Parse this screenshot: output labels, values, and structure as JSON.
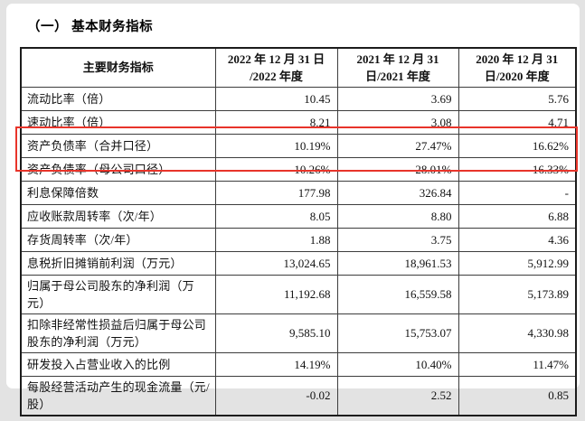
{
  "page": {
    "title": "（一） 基本财务指标"
  },
  "highlight_color": "#e8342a",
  "table": {
    "header": {
      "label": "主要财务指标",
      "cols": [
        {
          "line1": "2022 年 12 月 31 日",
          "line2": "/2022 年度"
        },
        {
          "line1": "2021 年 12 月 31",
          "line2": "日/2021 年度"
        },
        {
          "line1": "2020 年 12 月 31",
          "line2": "日/2020 年度"
        }
      ]
    },
    "rows": [
      {
        "label": "流动比率（倍）",
        "v2022": "10.45",
        "v2021": "3.69",
        "v2020": "5.76",
        "double": false,
        "highlight": false
      },
      {
        "label": "速动比率（倍）",
        "v2022": "8.21",
        "v2021": "3.08",
        "v2020": "4.71",
        "double": false,
        "highlight": false
      },
      {
        "label": "资产负债率（合并口径）",
        "v2022": "10.19%",
        "v2021": "27.47%",
        "v2020": "16.62%",
        "double": false,
        "highlight": true
      },
      {
        "label": "资产负债率（母公司口径）",
        "v2022": "10.26%",
        "v2021": "28.01%",
        "v2020": "16.33%",
        "double": false,
        "highlight": true
      },
      {
        "label": "利息保障倍数",
        "v2022": "177.98",
        "v2021": "326.84",
        "v2020": "-",
        "double": false,
        "highlight": false
      },
      {
        "label": "应收账款周转率（次/年）",
        "v2022": "8.05",
        "v2021": "8.80",
        "v2020": "6.88",
        "double": false,
        "highlight": false
      },
      {
        "label": "存货周转率（次/年）",
        "v2022": "1.88",
        "v2021": "3.75",
        "v2020": "4.36",
        "double": false,
        "highlight": false
      },
      {
        "label": "息税折旧摊销前利润（万元）",
        "v2022": "13,024.65",
        "v2021": "18,961.53",
        "v2020": "5,912.99",
        "double": false,
        "highlight": false
      },
      {
        "label": "归属于母公司股东的净利润（万元）",
        "v2022": "11,192.68",
        "v2021": "16,559.58",
        "v2020": "5,173.89",
        "double": true,
        "highlight": false
      },
      {
        "label": "扣除非经常性损益后归属于母公司股东的净利润（万元）",
        "v2022": "9,585.10",
        "v2021": "15,753.07",
        "v2020": "4,330.98",
        "double": true,
        "highlight": false
      },
      {
        "label": "研发投入占营业收入的比例",
        "v2022": "14.19%",
        "v2021": "10.40%",
        "v2020": "11.47%",
        "double": false,
        "highlight": false
      },
      {
        "label": "每股经营活动产生的现金流量（元/股）",
        "v2022": "-0.02",
        "v2021": "2.52",
        "v2020": "0.85",
        "double": true,
        "highlight": false
      }
    ]
  }
}
